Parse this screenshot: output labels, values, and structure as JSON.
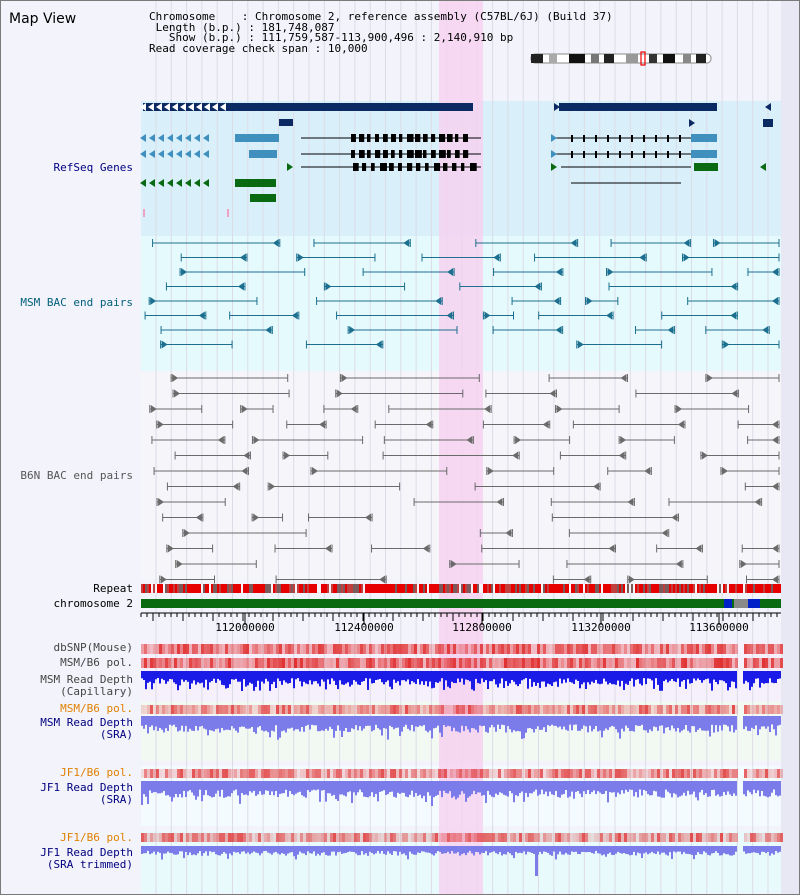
{
  "title": "Map View",
  "info": {
    "chromosome_key": "Chromosome",
    "chromosome_value": "Chromosome 2, reference assembly (C57BL/6J) (Build 37)",
    "length_key": "Length (b.p.)",
    "length_value": "181,748,087",
    "show_key": "Show (b.p.)",
    "show_value": "111,759,587-113,900,496 : 2,140,910 bp",
    "span_key": "Read coverage check span",
    "span_value": "10,000"
  },
  "tracks": {
    "refseq": "RefSeq Genes",
    "msm_bac": "MSM BAC end pairs",
    "b6n_bac": "B6N BAC end pairs",
    "repeat": "Repeat",
    "chromosome": "chromosome 2",
    "dbsnp": "dbSNP(Mouse)",
    "msm_pol1": "MSM/B6 pol.",
    "msm_depth_cap_1": "MSM Read Depth",
    "msm_depth_cap_2": "(Capillary)",
    "msm_pol2": "MSM/B6 pol.",
    "msm_depth_sra_1": "MSM Read Depth",
    "msm_depth_sra_2": "(SRA)",
    "jf1_pol1": "JF1/B6 pol.",
    "jf1_depth_sra_1": "JF1 Read Depth",
    "jf1_depth_sra_2": "(SRA)",
    "jf1_pol2": "JF1/B6 pol.",
    "jf1_depth_trim_1": "JF1 Read Depth",
    "jf1_depth_trim_2": "(SRA trimmed)"
  },
  "axis": {
    "ticks": [
      "112000000",
      "112400000",
      "112800000",
      "113200000",
      "113600000"
    ]
  },
  "colors": {
    "highlight": "#f6d2f0",
    "refseq_bg": "#d9effa",
    "msm_bg": "#e5fafc",
    "gene_dark": "#0b2a63",
    "gene_mid": "#3f8fbf",
    "gene_green": "#0a6a12",
    "chromosome_green": "#0a6a12",
    "repeat_red": "#e60000",
    "snp_red": "#e03030",
    "depth_capillary": "#1b1be8",
    "depth_sra": "#7b7bea",
    "label_blue": "#000080",
    "label_teal": "#00607a",
    "label_orange": "#e08000"
  }
}
